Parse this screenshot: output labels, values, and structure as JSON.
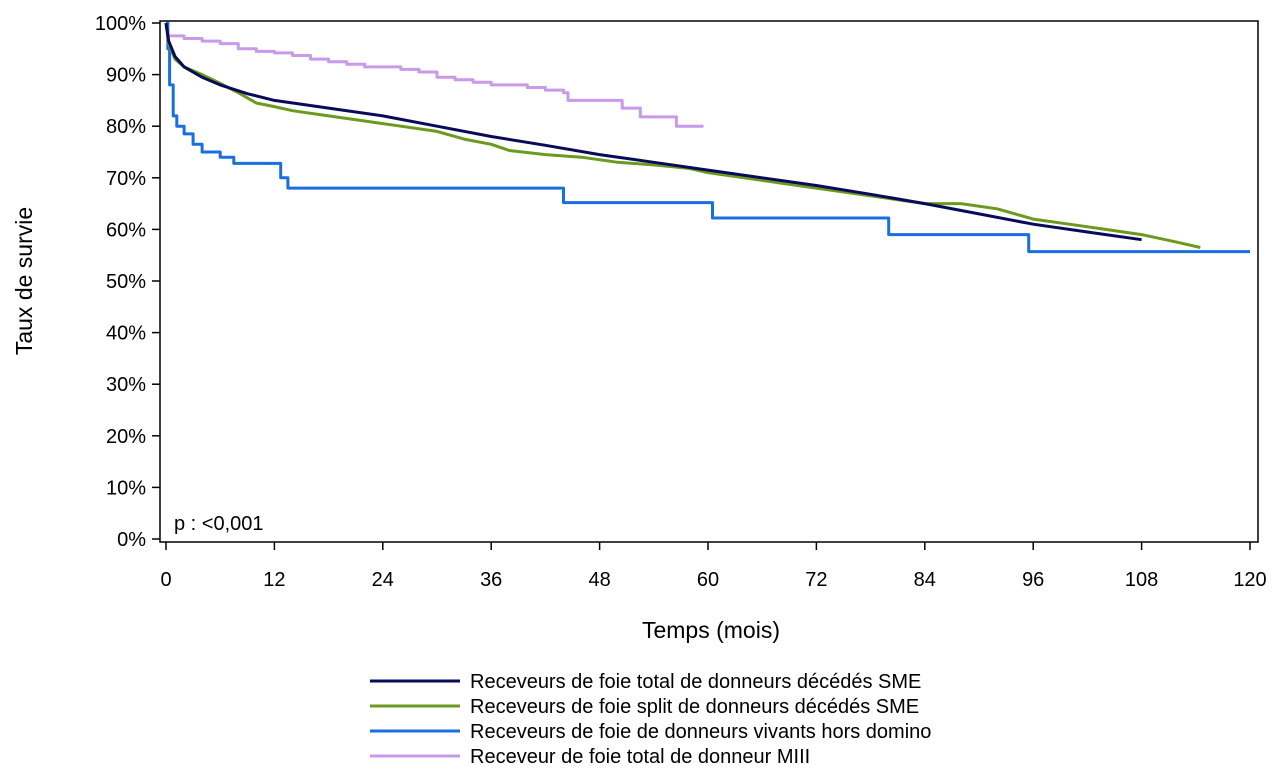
{
  "chart_data": {
    "type": "line",
    "title": "",
    "xlabel": "Temps (mois)",
    "ylabel": "Taux de survie",
    "xlim": [
      0,
      120
    ],
    "ylim": [
      0,
      100
    ],
    "xticks": [
      0,
      12,
      24,
      36,
      48,
      60,
      72,
      84,
      96,
      108,
      120
    ],
    "xtick_labels": [
      "0",
      "12",
      "24",
      "36",
      "48",
      "60",
      "72",
      "84",
      "96",
      "108",
      "120"
    ],
    "yticks": [
      0,
      10,
      20,
      30,
      40,
      50,
      60,
      70,
      80,
      90,
      100
    ],
    "ytick_labels": [
      "0%",
      "10%",
      "20%",
      "30%",
      "40%",
      "50%",
      "60%",
      "70%",
      "80%",
      "90%",
      "100%"
    ],
    "grid": false,
    "legend_position": "bottom",
    "annotation": "p : <0,001",
    "series": [
      {
        "name": "Receveurs de foie total de donneurs décédés SME",
        "color": "#0a0a5a",
        "step": false,
        "points": [
          [
            0,
            100
          ],
          [
            0.3,
            96.5
          ],
          [
            1,
            93.5
          ],
          [
            2,
            91.5
          ],
          [
            4,
            89.5
          ],
          [
            6,
            88
          ],
          [
            9,
            86.3
          ],
          [
            12,
            85
          ],
          [
            18,
            83.5
          ],
          [
            24,
            82
          ],
          [
            30,
            80
          ],
          [
            36,
            78
          ],
          [
            42,
            76.3
          ],
          [
            48,
            74.5
          ],
          [
            54,
            73
          ],
          [
            60,
            71.5
          ],
          [
            66,
            70
          ],
          [
            72,
            68.5
          ],
          [
            78,
            66.8
          ],
          [
            84,
            65
          ],
          [
            90,
            63
          ],
          [
            96,
            61
          ],
          [
            102,
            59.5
          ],
          [
            108,
            58
          ]
        ]
      },
      {
        "name": "Receveurs de foie split de donneurs décédés SME",
        "color": "#6a9a1f",
        "step": false,
        "points": [
          [
            0,
            100
          ],
          [
            0.3,
            96
          ],
          [
            1,
            93
          ],
          [
            2,
            91.5
          ],
          [
            4,
            90
          ],
          [
            6,
            88.3
          ],
          [
            8,
            86.5
          ],
          [
            10,
            84.5
          ],
          [
            12,
            83.8
          ],
          [
            14,
            83
          ],
          [
            18,
            82
          ],
          [
            22,
            81
          ],
          [
            26,
            80
          ],
          [
            30,
            79
          ],
          [
            33,
            77.5
          ],
          [
            36,
            76.5
          ],
          [
            38,
            75.3
          ],
          [
            42,
            74.5
          ],
          [
            46,
            74
          ],
          [
            50,
            73
          ],
          [
            54,
            72.5
          ],
          [
            58,
            71.8
          ],
          [
            60,
            71
          ],
          [
            64,
            70
          ],
          [
            68,
            69
          ],
          [
            72,
            68
          ],
          [
            76,
            67
          ],
          [
            80,
            66
          ],
          [
            84,
            65
          ],
          [
            88,
            65
          ],
          [
            92,
            64
          ],
          [
            96,
            62
          ],
          [
            100,
            61
          ],
          [
            104,
            60
          ],
          [
            108,
            59
          ],
          [
            112,
            57.5
          ],
          [
            114.5,
            56.5
          ]
        ]
      },
      {
        "name": "Receveurs de foie de donneurs vivants hors domino",
        "color": "#1a6fe0",
        "step": true,
        "points": [
          [
            0,
            100
          ],
          [
            0.2,
            95
          ],
          [
            0.4,
            88
          ],
          [
            0.8,
            82
          ],
          [
            1.2,
            80
          ],
          [
            2,
            78.5
          ],
          [
            3,
            76.5
          ],
          [
            4,
            75
          ],
          [
            6,
            74
          ],
          [
            7.5,
            72.8
          ],
          [
            12.5,
            72.8
          ],
          [
            12.7,
            70
          ],
          [
            13.5,
            68
          ],
          [
            28,
            68
          ],
          [
            44,
            65.2
          ],
          [
            56.5,
            65.2
          ],
          [
            60.5,
            62.2
          ],
          [
            66,
            62.2
          ],
          [
            80,
            59
          ],
          [
            94,
            59
          ],
          [
            95.5,
            55.7
          ],
          [
            120,
            55.7
          ]
        ]
      },
      {
        "name": "Receveur de foie total de donneur MIII",
        "color": "#c89ae8",
        "step": true,
        "points": [
          [
            0,
            100
          ],
          [
            0.2,
            97.5
          ],
          [
            2,
            97
          ],
          [
            4,
            96.5
          ],
          [
            6,
            96
          ],
          [
            8,
            95
          ],
          [
            10,
            94.5
          ],
          [
            12,
            94.2
          ],
          [
            14,
            93.7
          ],
          [
            16,
            93
          ],
          [
            18,
            92.5
          ],
          [
            20,
            92
          ],
          [
            22,
            91.5
          ],
          [
            26,
            91
          ],
          [
            28,
            90.5
          ],
          [
            30,
            89.5
          ],
          [
            32,
            89
          ],
          [
            34,
            88.5
          ],
          [
            36,
            88
          ],
          [
            40,
            87.5
          ],
          [
            42,
            87
          ],
          [
            44,
            86.5
          ],
          [
            44.5,
            85
          ],
          [
            50,
            85
          ],
          [
            50.5,
            83.5
          ],
          [
            52,
            83.5
          ],
          [
            52.5,
            81.8
          ],
          [
            56,
            81.8
          ],
          [
            56.5,
            80
          ],
          [
            59.5,
            80
          ]
        ]
      }
    ]
  }
}
